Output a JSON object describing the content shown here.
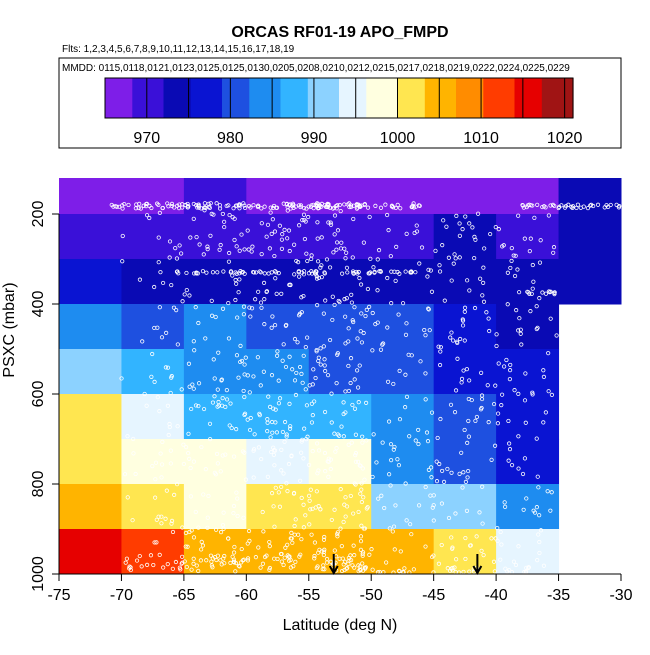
{
  "chart_data": {
    "type": "heatmap",
    "title": "ORCAS RF01-19 APO_FMPD",
    "flights_text": "Flts: 1,2,3,4,5,6,7,8,9,10,11,12,13,14,15,16,17,18,19",
    "dates_text": "MMDD: 0115,0118,0121,0123,0125,0125,0130,0205,0208,0210,0212,0215,0217,0218,0219,0222,0224,0225,0229",
    "xlabel": "Latitude (deg N)",
    "ylabel": "PSXC (mbar)",
    "xlim": [
      -75,
      -30
    ],
    "ylim": [
      1000,
      100
    ],
    "x_ticks": [
      -75,
      -70,
      -65,
      -60,
      -55,
      -50,
      -45,
      -40,
      -35,
      -30
    ],
    "y_ticks": [
      200,
      400,
      600,
      800,
      1000
    ],
    "colorbar": {
      "range": [
        965,
        1021
      ],
      "ticks": [
        970,
        980,
        990,
        1000,
        1010,
        1020
      ],
      "colors": [
        "#7e1ee8",
        "#3a10d8",
        "#0a0ab4",
        "#0a14d2",
        "#1e50e0",
        "#1e8cf0",
        "#32b4ff",
        "#8cd2ff",
        "#e6f5ff",
        "#ffffe0",
        "#ffe650",
        "#ffb400",
        "#ff8c00",
        "#ff3c00",
        "#e60000",
        "#a01414"
      ]
    },
    "lat_edges": [
      -75,
      -70,
      -65,
      -60,
      -55,
      -50,
      -45,
      -40,
      -35,
      -30
    ],
    "pres_edges": [
      100,
      200,
      300,
      400,
      500,
      600,
      700,
      800,
      900,
      1000
    ],
    "grid_values": [
      [
        968,
        968,
        969,
        968,
        968,
        967,
        967,
        968,
        973,
        null
      ],
      [
        971,
        970,
        970,
        971,
        970,
        971,
        972,
        971,
        972,
        null
      ],
      [
        978,
        974,
        975,
        975,
        975,
        975,
        974,
        974,
        974,
        null
      ],
      [
        985,
        980,
        983,
        982,
        980,
        979,
        976,
        975,
        null,
        null
      ],
      [
        992,
        986,
        985,
        984,
        982,
        981,
        978,
        976,
        null,
        null
      ],
      [
        1000,
        993,
        988,
        987,
        986,
        983,
        979,
        978,
        null,
        null
      ],
      [
        1002,
        998,
        997,
        993,
        997,
        985,
        982,
        977,
        null,
        null
      ],
      [
        1006,
        1003,
        999,
        1003,
        1003,
        991,
        991,
        984,
        null,
        null
      ],
      [
        1017,
        1012,
        1006,
        1006,
        1005,
        1005,
        1002,
        996,
        null,
        null
      ]
    ],
    "markers": [
      {
        "type": "arrow",
        "lat": -53,
        "pres": 1000
      },
      {
        "type": "arrow",
        "lat": -41.5,
        "pres": 1000
      }
    ]
  }
}
